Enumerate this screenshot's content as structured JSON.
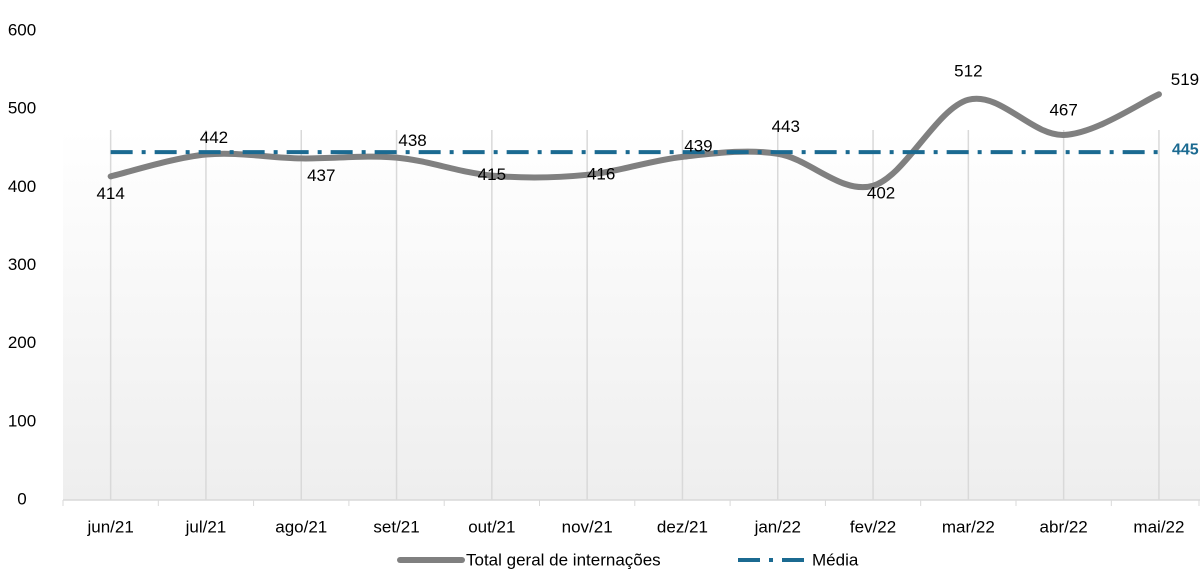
{
  "chart_data": {
    "type": "line",
    "categories": [
      "jun/21",
      "jul/21",
      "ago/21",
      "set/21",
      "out/21",
      "nov/21",
      "dez/21",
      "jan/22",
      "fev/22",
      "mar/22",
      "abr/22",
      "mai/22"
    ],
    "series": [
      {
        "name": "Total geral de internações",
        "color": "#808080",
        "values": [
          414,
          442,
          437,
          438,
          415,
          416,
          439,
          443,
          402,
          512,
          467,
          519
        ]
      },
      {
        "name": "Média",
        "color": "#1b6a91",
        "values": [
          445,
          445,
          445,
          445,
          445,
          445,
          445,
          445,
          445,
          445,
          445,
          445
        ]
      }
    ],
    "ylim": [
      0,
      600
    ],
    "yticks": [
      0,
      100,
      200,
      300,
      400,
      500,
      600
    ],
    "legend": "bottom",
    "grid": false
  }
}
